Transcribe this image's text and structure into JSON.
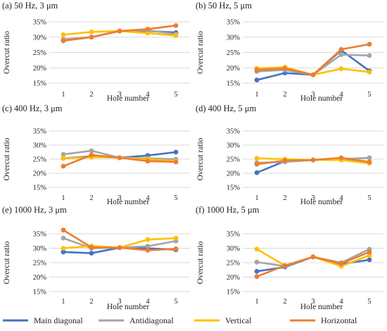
{
  "legend": [
    {
      "name": "Main diagonal",
      "color": "#4472C4"
    },
    {
      "name": "Antidiagonal",
      "color": "#A5A5A5"
    },
    {
      "name": "Vertical",
      "color": "#FFC000"
    },
    {
      "name": "Horizontal",
      "color": "#ED7D31"
    }
  ],
  "chart_data": [
    {
      "type": "line",
      "title": "(a) 50 Hz, 3 μm",
      "xlabel": "Hole number",
      "ylabel": "Overcut ratio",
      "categories": [
        "1",
        "2",
        "3",
        "4",
        "5"
      ],
      "ylim": [
        15,
        35
      ],
      "yticks": [
        "15%",
        "20%",
        "25%",
        "30%",
        "35%"
      ],
      "series": [
        {
          "name": "Main diagonal",
          "color": "#4472C4",
          "values": [
            29.0,
            30.0,
            32.0,
            32.0,
            31.5
          ]
        },
        {
          "name": "Antidiagonal",
          "color": "#A5A5A5",
          "values": [
            29.3,
            30.0,
            32.0,
            32.2,
            31.0
          ]
        },
        {
          "name": "Vertical",
          "color": "#FFC000",
          "values": [
            30.8,
            31.7,
            32.0,
            31.3,
            30.5
          ]
        },
        {
          "name": "Horizontal",
          "color": "#ED7D31",
          "values": [
            28.8,
            30.0,
            32.0,
            32.6,
            33.8
          ]
        }
      ]
    },
    {
      "type": "line",
      "title": "(b) 50 Hz, 5 μm",
      "xlabel": "Hole number",
      "ylabel": "Overcut ratio",
      "categories": [
        "1",
        "2",
        "3",
        "4",
        "5"
      ],
      "ylim": [
        15,
        35
      ],
      "yticks": [
        "15%",
        "20%",
        "25%",
        "30%",
        "35%"
      ],
      "series": [
        {
          "name": "Main diagonal",
          "color": "#4472C4",
          "values": [
            16.0,
            18.3,
            17.7,
            25.7,
            19.0
          ]
        },
        {
          "name": "Antidiagonal",
          "color": "#A5A5A5",
          "values": [
            18.8,
            19.3,
            17.7,
            24.3,
            24.0
          ]
        },
        {
          "name": "Vertical",
          "color": "#FFC000",
          "values": [
            19.8,
            20.2,
            17.7,
            19.7,
            18.6
          ]
        },
        {
          "name": "Horizontal",
          "color": "#ED7D31",
          "values": [
            19.3,
            19.8,
            17.7,
            26.0,
            27.7
          ]
        }
      ]
    },
    {
      "type": "line",
      "title": "(c) 400 Hz, 3 μm",
      "xlabel": "Hole number",
      "ylabel": "Overcut ratio",
      "categories": [
        "1",
        "2",
        "3",
        "4",
        "5"
      ],
      "ylim": [
        15,
        35
      ],
      "yticks": [
        "15%",
        "20%",
        "25%",
        "30%",
        "35%"
      ],
      "series": [
        {
          "name": "Main diagonal",
          "color": "#4472C4",
          "values": [
            25.3,
            26.0,
            25.5,
            26.3,
            27.5
          ]
        },
        {
          "name": "Antidiagonal",
          "color": "#A5A5A5",
          "values": [
            26.7,
            28.0,
            25.5,
            25.3,
            25.0
          ]
        },
        {
          "name": "Vertical",
          "color": "#FFC000",
          "values": [
            25.3,
            25.7,
            25.5,
            25.0,
            24.3
          ]
        },
        {
          "name": "Horizontal",
          "color": "#ED7D31",
          "values": [
            22.5,
            26.5,
            25.5,
            24.3,
            24.0
          ]
        }
      ]
    },
    {
      "type": "line",
      "title": "(d) 400 Hz, 5 μm",
      "xlabel": "Hole number",
      "ylabel": "Overcut ratio",
      "categories": [
        "1",
        "2",
        "3",
        "4",
        "5"
      ],
      "ylim": [
        15,
        35
      ],
      "yticks": [
        "15%",
        "20%",
        "25%",
        "30%",
        "35%"
      ],
      "series": [
        {
          "name": "Main diagonal",
          "color": "#4472C4",
          "values": [
            20.2,
            24.3,
            24.7,
            25.3,
            24.0
          ]
        },
        {
          "name": "Antidiagonal",
          "color": "#A5A5A5",
          "values": [
            23.7,
            24.0,
            24.7,
            25.0,
            25.5
          ]
        },
        {
          "name": "Vertical",
          "color": "#FFC000",
          "values": [
            25.3,
            25.0,
            24.7,
            24.7,
            23.5
          ]
        },
        {
          "name": "Horizontal",
          "color": "#ED7D31",
          "values": [
            23.2,
            24.5,
            24.7,
            25.5,
            24.0
          ]
        }
      ]
    },
    {
      "type": "line",
      "title": "(e) 1000 Hz, 3 μm",
      "xlabel": "Hole number",
      "ylabel": "Overcut ratio",
      "categories": [
        "1",
        "2",
        "3",
        "4",
        "5"
      ],
      "ylim": [
        15,
        35
      ],
      "yticks": [
        "15%",
        "20%",
        "25%",
        "30%",
        "35%"
      ],
      "series": [
        {
          "name": "Main diagonal",
          "color": "#4472C4",
          "values": [
            28.7,
            28.3,
            30.2,
            30.0,
            29.5
          ]
        },
        {
          "name": "Antidiagonal",
          "color": "#A5A5A5",
          "values": [
            33.5,
            30.0,
            30.2,
            30.7,
            32.5
          ]
        },
        {
          "name": "Vertical",
          "color": "#FFC000",
          "values": [
            30.0,
            30.8,
            30.2,
            33.0,
            33.5
          ]
        },
        {
          "name": "Horizontal",
          "color": "#ED7D31",
          "values": [
            36.3,
            30.3,
            30.2,
            29.3,
            29.8
          ]
        }
      ]
    },
    {
      "type": "line",
      "title": "(f) 1000 Hz, 5 μm",
      "xlabel": "Hole number",
      "ylabel": "Overcut ratio",
      "categories": [
        "1",
        "2",
        "3",
        "4",
        "5"
      ],
      "ylim": [
        15,
        35
      ],
      "yticks": [
        "15%",
        "20%",
        "25%",
        "30%",
        "35%"
      ],
      "series": [
        {
          "name": "Main diagonal",
          "color": "#4472C4",
          "values": [
            22.0,
            23.5,
            27.0,
            24.5,
            26.0
          ]
        },
        {
          "name": "Antidiagonal",
          "color": "#A5A5A5",
          "values": [
            25.2,
            23.8,
            27.0,
            25.0,
            29.7
          ]
        },
        {
          "name": "Vertical",
          "color": "#FFC000",
          "values": [
            29.7,
            24.0,
            27.0,
            23.8,
            27.5
          ]
        },
        {
          "name": "Horizontal",
          "color": "#ED7D31",
          "values": [
            20.2,
            24.0,
            27.0,
            24.7,
            28.7
          ]
        }
      ]
    }
  ]
}
